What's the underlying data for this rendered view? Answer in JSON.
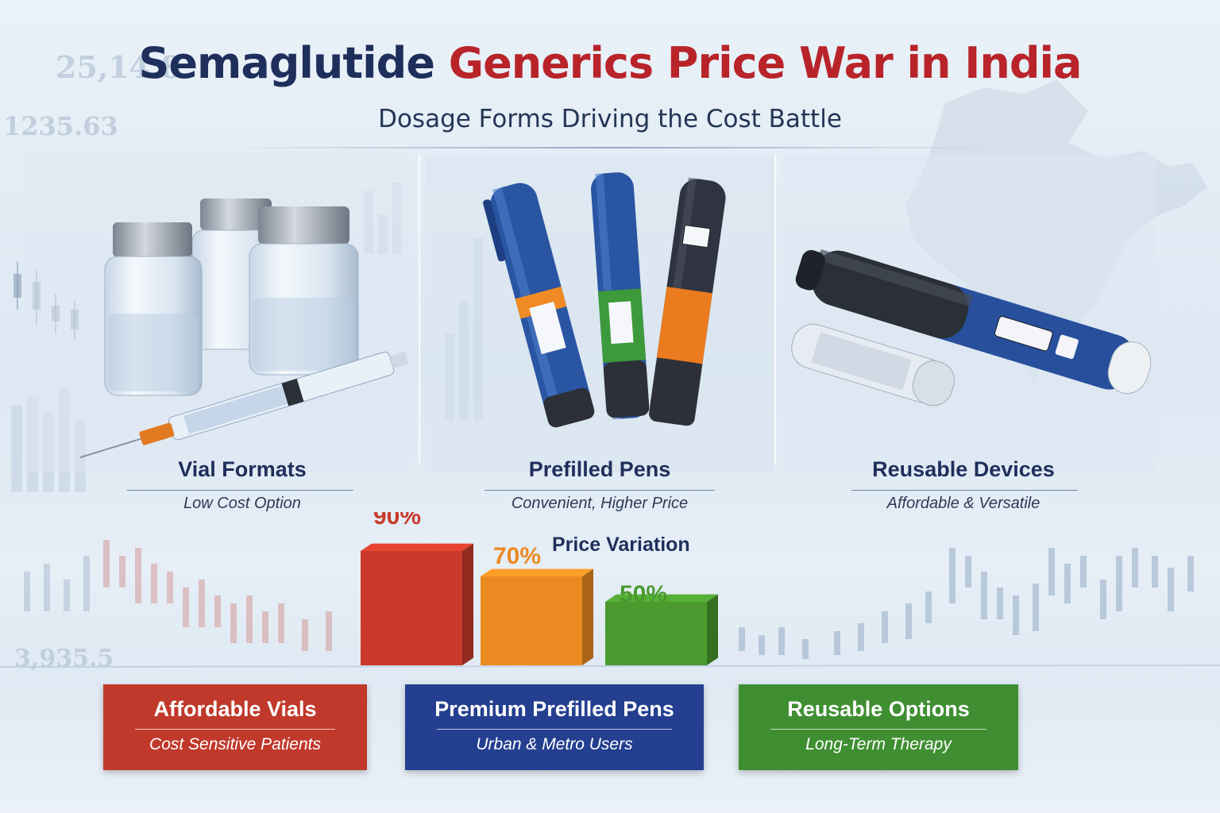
{
  "header": {
    "title_part1": "Semaglutide",
    "title_part2": "Generics Price War in India",
    "subtitle": "Dosage Forms Driving the Cost Battle"
  },
  "background_numbers": [
    "25,14.8",
    "1235.63",
    "3,935.5"
  ],
  "dosage_forms": [
    {
      "title": "Vial Formats",
      "subtitle": "Low Cost Option",
      "image": "vials-and-syringe-illustration"
    },
    {
      "title": "Prefilled Pens",
      "subtitle": "Convenient, Higher Price",
      "image": "three-prefilled-pens-illustration"
    },
    {
      "title": "Reusable Devices",
      "subtitle": "Affordable & Versatile",
      "image": "reusable-pen-device-illustration"
    }
  ],
  "price_chart": {
    "title": "Price Variation",
    "bars": [
      {
        "label": "90%",
        "value": 90,
        "color": "#c93a2b"
      },
      {
        "label": "70%",
        "value": 70,
        "color": "#ec8a22"
      },
      {
        "label": "50%",
        "value": 50,
        "color": "#4a9a2f"
      }
    ]
  },
  "segments": [
    {
      "title": "Affordable Vials",
      "subtitle": "Cost Sensitive Patients",
      "color": "#c0392b"
    },
    {
      "title": "Premium Prefilled Pens",
      "subtitle": "Urban & Metro Users",
      "color": "#243f8f"
    },
    {
      "title": "Reusable Options",
      "subtitle": "Long-Term Therapy",
      "color": "#3f8f32"
    }
  ],
  "colors": {
    "navy": "#1f2f5c",
    "red": "#b8242a"
  }
}
